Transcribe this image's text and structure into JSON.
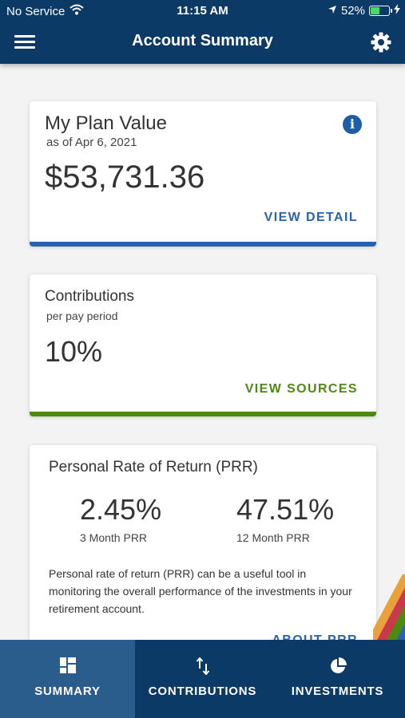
{
  "status_bar": {
    "carrier": "No Service",
    "time": "11:15 AM",
    "battery": "52%",
    "battery_level": 0.52
  },
  "header": {
    "title": "Account Summary",
    "menu_icon": "hamburger-icon",
    "settings_icon": "gear-icon"
  },
  "plan_value": {
    "title": "My Plan Value",
    "as_of": "as of Apr 6, 2021",
    "amount": "$53,731.36",
    "link": "VIEW DETAIL",
    "info_icon": "info-icon",
    "accent": "#2a63ad"
  },
  "contributions": {
    "title": "Contributions",
    "subtitle": "per pay period",
    "value": "10%",
    "link": "VIEW SOURCES",
    "accent": "#4e8a12"
  },
  "prr": {
    "title": "Personal Rate of Return (PRR)",
    "stats": [
      {
        "value": "2.45%",
        "label": "3 Month PRR"
      },
      {
        "value": "47.51%",
        "label": "12 Month PRR"
      }
    ],
    "description": "Personal rate of return (PRR) can be a useful tool in monitoring the overall performance of the investments in your retirement account.",
    "link": "ABOUT PRR",
    "accent": "#2a63ad"
  },
  "tabs": [
    {
      "label": "SUMMARY",
      "icon": "grid-icon",
      "active": true
    },
    {
      "label": "CONTRIBUTIONS",
      "icon": "swap-arrows-icon",
      "active": false
    },
    {
      "label": "INVESTMENTS",
      "icon": "pie-chart-icon",
      "active": false
    }
  ],
  "colors": {
    "header_bg": "#0b3a66",
    "tab_active_bg": "#2b5d8c",
    "page_bg": "#f3f3f3"
  }
}
